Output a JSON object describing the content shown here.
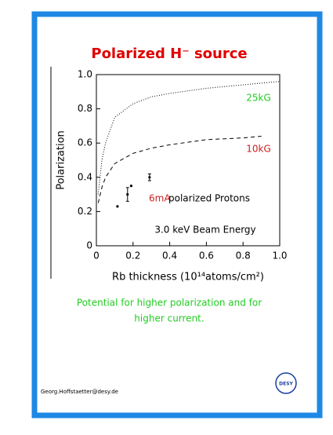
{
  "chart_data": {
    "type": "line",
    "title": "Polarized H⁻ source",
    "x_label": "Rb thickness (10¹⁴atoms/cm²)",
    "y_label": "Polarization",
    "xlim": [
      0,
      1
    ],
    "ylim": [
      0,
      1
    ],
    "xticks": [
      0,
      0.2,
      0.4,
      0.6,
      0.8,
      {
        "value": 1,
        "label": "1.0"
      }
    ],
    "yticks": [
      0,
      0.2,
      0.4,
      0.6,
      0.8,
      {
        "value": 1,
        "label": "1.0"
      }
    ],
    "series": [
      {
        "name": "25kG",
        "color": "#22cc22",
        "style": "dotted",
        "x": [
          0.01,
          0.03,
          0.05,
          0.1,
          0.2,
          0.3,
          0.4,
          0.6,
          0.8,
          1.0
        ],
        "values": [
          0.3,
          0.5,
          0.6,
          0.75,
          0.83,
          0.87,
          0.89,
          0.92,
          0.94,
          0.96
        ]
      },
      {
        "name": "10kG",
        "color": "#cc2222",
        "style": "dashed",
        "x": [
          0.01,
          0.03,
          0.05,
          0.1,
          0.2,
          0.3,
          0.4,
          0.6,
          0.8,
          0.9
        ],
        "values": [
          0.25,
          0.34,
          0.4,
          0.48,
          0.54,
          0.57,
          0.59,
          0.62,
          0.63,
          0.64
        ]
      },
      {
        "style": "points",
        "color": "#000000",
        "x": [
          0.115,
          0.17,
          0.19,
          0.29
        ],
        "values": [
          0.23,
          0.3,
          0.35,
          0.4
        ],
        "errors": [
          0,
          0.04,
          0,
          0.02
        ]
      }
    ],
    "annotations": [
      {
        "text": "6mA",
        "color": "#cc2222"
      },
      {
        "text": "polarized Protons",
        "color": "#000000"
      },
      {
        "text": "3.0 keV Beam Energy",
        "color": "#000000"
      }
    ]
  },
  "caption": [
    "Potential for higher polarization and for",
    "higher current."
  ],
  "footer": "Georg.Hoffstaetter@desy.de",
  "logo": "DESY"
}
